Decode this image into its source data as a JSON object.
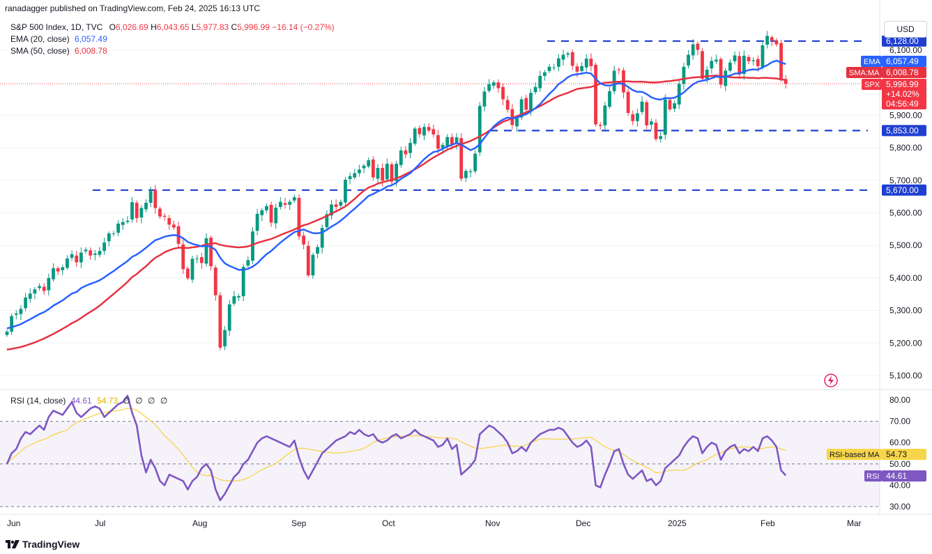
{
  "header": {
    "publisher_text": "ranadagger published on TradingView.com, Feb 24, 2025 16:13 UTC"
  },
  "legend": {
    "symbol": "S&P 500 Index, 1D, TVC",
    "ohlc": {
      "o_label": "O",
      "o": "6,026.69",
      "h_label": "H",
      "h": "6,043.65",
      "l_label": "L",
      "l": "5,977.83",
      "c_label": "C",
      "c": "5,996.99",
      "change": "−16.14 (−0.27%)"
    },
    "ema_label": "EMA (20, close)",
    "ema_value": "6,057.49",
    "sma_label": "SMA (50, close)",
    "sma_value": "6,008.78"
  },
  "currency": "USD",
  "logo_text": "TradingView",
  "rsi_legend": {
    "label": "RSI (14, close)",
    "rsi": "44.61",
    "ma": "54.73",
    "z1": "∅",
    "z2": "∅",
    "z3": "∅",
    "z4": "∅"
  },
  "colors": {
    "up": "#089981",
    "down": "#f23645",
    "ema": "#2962ff",
    "sma": "#e53240",
    "rsi": "#7e57c2",
    "rsi_ma": "#f7d54a",
    "support_line": "#1f3fd1"
  },
  "chart_data": {
    "type": "candlestick",
    "title": "S&P 500 Index, 1D, TVC",
    "price_axis": {
      "ticks": [
        "5,100.00",
        "5,200.00",
        "5,300.00",
        "5,400.00",
        "5,500.00",
        "5,600.00",
        "5,700.00",
        "5,800.00",
        "5,900.00",
        "6,100.00"
      ],
      "ylim": [
        5060,
        6160
      ]
    },
    "time_axis_labels": [
      "Jun",
      "Jul",
      "Aug",
      "Sep",
      "Oct",
      "Nov",
      "Dec",
      "2025",
      "Feb",
      "Mar"
    ],
    "horizontal_levels": [
      {
        "value": 6128.0,
        "label": "6,128.00"
      },
      {
        "value": 5853.0,
        "label": "5,853.00"
      },
      {
        "value": 5670.0,
        "label": "5,670.00"
      }
    ],
    "price_labels": [
      {
        "name": "EMA",
        "value": "6,057.49"
      },
      {
        "name": "SMA:MA",
        "value": "6,008.78"
      },
      {
        "name": "SPX",
        "value": "5,996.99",
        "change": "+14.02%",
        "countdown": "04:56:49"
      }
    ],
    "rsi_axis": {
      "ticks": [
        "30.00",
        "40.00",
        "50.00",
        "60.00",
        "70.00",
        "80.00"
      ],
      "ylim": [
        28,
        84
      ],
      "band": [
        30,
        70
      ]
    },
    "rsi_labels": [
      {
        "name": "RSI-based MA",
        "value": "54.73"
      },
      {
        "name": "RSI",
        "value": "44.61"
      }
    ],
    "closes": [
      5235,
      5283,
      5291,
      5305,
      5340,
      5352,
      5365,
      5375,
      5360,
      5400,
      5430,
      5420,
      5433,
      5460,
      5473,
      5448,
      5478,
      5487,
      5469,
      5475,
      5483,
      5509,
      5537,
      5537,
      5567,
      5572,
      5576,
      5633,
      5584,
      5615,
      5631,
      5667,
      5615,
      5589,
      5588,
      5564,
      5555,
      5505,
      5427,
      5399,
      5459,
      5460,
      5446,
      5522,
      5436,
      5347,
      5186,
      5240,
      5319,
      5344,
      5344,
      5434,
      5455,
      5543,
      5597,
      5608,
      5621,
      5570,
      5616,
      5634,
      5625,
      5634,
      5648,
      5528,
      5503,
      5408,
      5471,
      5495,
      5554,
      5596,
      5626,
      5618,
      5634,
      5702,
      5713,
      5722,
      5733,
      5745,
      5762,
      5709,
      5738,
      5699,
      5751,
      5696,
      5751,
      5792,
      5780,
      5815,
      5859,
      5842,
      5864,
      5853,
      5841,
      5797,
      5809,
      5833,
      5808,
      5832,
      5705,
      5729,
      5728,
      5782,
      5929,
      5973,
      5995,
      6001,
      5983,
      5949,
      5917,
      5870,
      5893,
      5949,
      5917,
      5969,
      5987,
      6021,
      6032,
      6049,
      6047,
      6075,
      6086,
      6090,
      6052,
      6034,
      6051,
      6074,
      6051,
      5872,
      5867,
      5930,
      5974,
      6037,
      6040,
      5970,
      5907,
      5882,
      5906,
      5942,
      5869,
      5881,
      5827,
      5836,
      5949,
      5918,
      5937,
      5996,
      6049,
      6086,
      6118,
      6101,
      6012,
      6040,
      6067,
      6071,
      5994,
      6037,
      6062,
      6084,
      6025,
      6083,
      6066,
      6069,
      6051,
      6115,
      6144,
      6129,
      6118,
      6013,
      5997
    ],
    "rsi": [
      50,
      55,
      57,
      62,
      65,
      64,
      66,
      68,
      66,
      72,
      75,
      74,
      73,
      76,
      79,
      74,
      72,
      74,
      76,
      77,
      76,
      72,
      74,
      76,
      78,
      79,
      82,
      74,
      68,
      54,
      46,
      52,
      48,
      42,
      40,
      45,
      44,
      43,
      42,
      38,
      42,
      44,
      48,
      50,
      47,
      38,
      33,
      36,
      40,
      44,
      46,
      50,
      52,
      56,
      60,
      62,
      63,
      62,
      61,
      60,
      59,
      58,
      61,
      53,
      47,
      43,
      47,
      51,
      55,
      57,
      59,
      61,
      62,
      63,
      65,
      64,
      66,
      64,
      63,
      64,
      61,
      60,
      61,
      63,
      64,
      62,
      63,
      64,
      66,
      64,
      63,
      62,
      61,
      58,
      59,
      62,
      57,
      59,
      45,
      47,
      49,
      52,
      64,
      66,
      68,
      67,
      65,
      63,
      60,
      55,
      56,
      58,
      56,
      60,
      62,
      64,
      65,
      66,
      66,
      67,
      66,
      63,
      60,
      58,
      59,
      61,
      58,
      40,
      39,
      45,
      50,
      56,
      57,
      50,
      45,
      43,
      45,
      47,
      42,
      43,
      40,
      42,
      48,
      50,
      52,
      54,
      58,
      61,
      63,
      62,
      55,
      58,
      60,
      59,
      52,
      56,
      58,
      59,
      55,
      57,
      56,
      58,
      56,
      62,
      63,
      61,
      58,
      47,
      44.61
    ],
    "ema20": [
      5245,
      5249,
      5253,
      5258,
      5266,
      5273,
      5281,
      5289,
      5295,
      5304,
      5315,
      5323,
      5331,
      5342,
      5352,
      5357,
      5369,
      5376,
      5382,
      5387,
      5393,
      5402,
      5412,
      5421,
      5432,
      5442,
      5452,
      5465,
      5472,
      5482,
      5493,
      5505,
      5516,
      5521,
      5527,
      5530,
      5532,
      5530,
      5522,
      5511,
      5505,
      5501,
      5497,
      5499,
      5496,
      5486,
      5462,
      5445,
      5437,
      5431,
      5425,
      5425,
      5428,
      5435,
      5445,
      5460,
      5473,
      5483,
      5496,
      5509,
      5520,
      5531,
      5541,
      5545,
      5549,
      5543,
      5538,
      5537,
      5540,
      5548,
      5558,
      5566,
      5576,
      5588,
      5601,
      5613,
      5626,
      5639,
      5652,
      5658,
      5666,
      5672,
      5681,
      5685,
      5693,
      5705,
      5713,
      5722,
      5736,
      5750,
      5765,
      5777,
      5787,
      5790,
      5797,
      5804,
      5809,
      5815,
      5810,
      5801,
      5793,
      5799,
      5811,
      5831,
      5849,
      5866,
      5878,
      5887,
      5893,
      5890,
      5893,
      5899,
      5903,
      5912,
      5922,
      5934,
      5950,
      5966,
      5979,
      5996,
      6005,
      6017,
      6024,
      6026,
      6028,
      6031,
      6028,
      6012,
      5998,
      5992,
      5991,
      5995,
      5998,
      5996,
      5987,
      5977,
      5972,
      5972,
      5965,
      5955,
      5950,
      5948,
      5953,
      5952,
      5954,
      5961,
      5970,
      5983,
      5995,
      6003,
      6006,
      6009,
      6014,
      6019,
      6017,
      6019,
      6022,
      6028,
      6029,
      6034,
      6039,
      6041,
      6040,
      6047,
      6054,
      6063,
      6068,
      6062,
      6057.49
    ],
    "sma50": [
      5180,
      5182,
      5185,
      5188,
      5192,
      5197,
      5202,
      5208,
      5214,
      5221,
      5228,
      5236,
      5244,
      5252,
      5261,
      5268,
      5277,
      5287,
      5296,
      5305,
      5315,
      5327,
      5339,
      5351,
      5363,
      5375,
      5388,
      5403,
      5412,
      5425,
      5436,
      5450,
      5462,
      5470,
      5479,
      5485,
      5490,
      5493,
      5493,
      5492,
      5494,
      5496,
      5499,
      5503,
      5505,
      5507,
      5502,
      5499,
      5497,
      5495,
      5494,
      5495,
      5497,
      5502,
      5508,
      5512,
      5516,
      5520,
      5526,
      5532,
      5538,
      5543,
      5549,
      5556,
      5562,
      5566,
      5572,
      5578,
      5584,
      5591,
      5598,
      5605,
      5612,
      5620,
      5631,
      5643,
      5656,
      5668,
      5678,
      5683,
      5690,
      5694,
      5698,
      5701,
      5706,
      5712,
      5719,
      5726,
      5734,
      5742,
      5751,
      5761,
      5770,
      5778,
      5786,
      5794,
      5800,
      5806,
      5811,
      5816,
      5821,
      5828,
      5835,
      5843,
      5852,
      5862,
      5871,
      5880,
      5885,
      5891,
      5897,
      5903,
      5909,
      5915,
      5921,
      5928,
      5936,
      5944,
      5952,
      5959,
      5964,
      5969,
      5975,
      5981,
      5983,
      5985,
      5987,
      5992,
      5997,
      6000,
      6001,
      6002,
      6003,
      6004,
      6004,
      6003,
      6003,
      6003,
      6002,
      6001,
      6001,
      6002,
      6004,
      6005,
      6007,
      6009,
      6012,
      6014,
      6016,
      6017,
      6018,
      6020,
      6021,
      6022,
      6020,
      6019,
      6017,
      6016,
      6016,
      6016,
      6015,
      6015,
      6014,
      6015,
      6015,
      6014,
      6013,
      6010,
      6008.78
    ]
  }
}
